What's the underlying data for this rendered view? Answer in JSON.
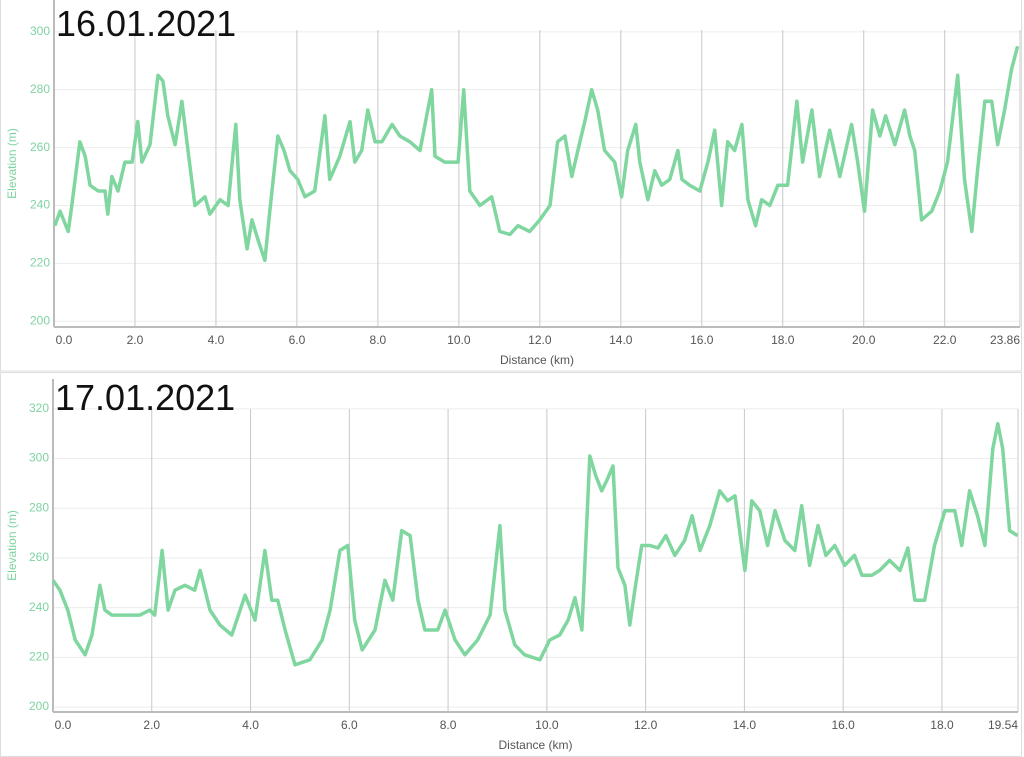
{
  "chart_data": [
    {
      "type": "line",
      "title": "16.01.2021",
      "y_label": "Elevation (m)",
      "x_label": "Distance (km)",
      "color": "#7fd69f",
      "xlim": [
        0,
        23.86
      ],
      "ylim": [
        198,
        311
      ],
      "xticks": [
        {
          "value": 0,
          "label": "0.0"
        },
        {
          "value": 2,
          "label": "2.0"
        },
        {
          "value": 4,
          "label": "4.0"
        },
        {
          "value": 6,
          "label": "6.0"
        },
        {
          "value": 8,
          "label": "8.0"
        },
        {
          "value": 10,
          "label": "10.0"
        },
        {
          "value": 12,
          "label": "12.0"
        },
        {
          "value": 14,
          "label": "14.0"
        },
        {
          "value": 16,
          "label": "16.0"
        },
        {
          "value": 18,
          "label": "18.0"
        },
        {
          "value": 20,
          "label": "20.0"
        },
        {
          "value": 22,
          "label": "22.0"
        },
        23.86
      ],
      "yticks": [
        200,
        220,
        240,
        260,
        280,
        300
      ],
      "grid": true,
      "x": [
        0.02,
        0.15,
        0.35,
        0.44,
        0.64,
        0.77,
        0.89,
        1.09,
        1.26,
        1.33,
        1.43,
        1.58,
        1.75,
        1.93,
        2.07,
        2.17,
        2.37,
        2.57,
        2.69,
        2.81,
        2.99,
        3.16,
        3.31,
        3.48,
        3.73,
        3.85,
        4.1,
        4.3,
        4.49,
        4.59,
        4.77,
        4.89,
        5.04,
        5.21,
        5.33,
        5.53,
        5.68,
        5.83,
        6.02,
        6.2,
        6.44,
        6.69,
        6.81,
        7.06,
        7.31,
        7.43,
        7.6,
        7.75,
        7.93,
        8.1,
        8.35,
        8.54,
        8.79,
        9.04,
        9.33,
        9.41,
        9.65,
        9.98,
        10.12,
        10.27,
        10.52,
        10.81,
        11.01,
        11.26,
        11.46,
        11.75,
        12.0,
        12.25,
        12.44,
        12.62,
        12.79,
        12.99,
        13.11,
        13.28,
        13.43,
        13.6,
        13.85,
        14.02,
        14.17,
        14.37,
        14.47,
        14.67,
        14.84,
        15.01,
        15.21,
        15.41,
        15.51,
        15.7,
        15.95,
        16.15,
        16.32,
        16.49,
        16.64,
        16.81,
        16.99,
        17.14,
        17.33,
        17.48,
        17.68,
        17.88,
        18.12,
        18.35,
        18.49,
        18.72,
        18.91,
        19.16,
        19.41,
        19.7,
        19.85,
        20.02,
        20.22,
        20.4,
        20.54,
        20.77,
        21.01,
        21.14,
        21.26,
        21.43,
        21.68,
        21.88,
        22.07,
        22.32,
        22.49,
        22.67,
        22.81,
        22.99,
        23.16,
        23.31,
        23.48,
        23.65,
        23.8
      ],
      "values": [
        233,
        238,
        231,
        240,
        262,
        257,
        247,
        245,
        245,
        237,
        250,
        245,
        255,
        255,
        269,
        255,
        261,
        285,
        283,
        271,
        261,
        276,
        259,
        240,
        243,
        237,
        242,
        240,
        268,
        242,
        225,
        235,
        228,
        221,
        238,
        264,
        259,
        252,
        249,
        243,
        245,
        271,
        249,
        257,
        269,
        255,
        259,
        273,
        262,
        262,
        268,
        264,
        262,
        259,
        280,
        257,
        255,
        255,
        280,
        245,
        240,
        243,
        231,
        230,
        233,
        231,
        235,
        240,
        262,
        264,
        250,
        262,
        269,
        280,
        273,
        259,
        255,
        243,
        259,
        268,
        255,
        242,
        252,
        247,
        249,
        259,
        249,
        247,
        245,
        255,
        266,
        240,
        262,
        259,
        268,
        242,
        233,
        242,
        240,
        247,
        247,
        276,
        255,
        273,
        250,
        266,
        250,
        268,
        255,
        238,
        273,
        264,
        271,
        261,
        273,
        264,
        259,
        235,
        238,
        245,
        255,
        285,
        249,
        231,
        252,
        276,
        276,
        261,
        273,
        287,
        295
      ]
    },
    {
      "type": "line",
      "title": "17.01.2021",
      "y_label": "Elevation (m)",
      "x_label": "Distance (km)",
      "color": "#7fd69f",
      "xlim": [
        0,
        19.54
      ],
      "ylim": [
        198,
        332
      ],
      "xticks": [
        {
          "value": 0,
          "label": "0.0"
        },
        {
          "value": 2,
          "label": "2.0"
        },
        {
          "value": 4,
          "label": "4.0"
        },
        {
          "value": 6,
          "label": "6.0"
        },
        {
          "value": 8,
          "label": "8.0"
        },
        {
          "value": 10,
          "label": "10.0"
        },
        {
          "value": 12,
          "label": "12.0"
        },
        {
          "value": 14,
          "label": "14.0"
        },
        {
          "value": 16,
          "label": "16.0"
        },
        {
          "value": 18,
          "label": "18.0"
        },
        19.54
      ],
      "yticks": [
        200,
        220,
        240,
        260,
        280,
        300,
        320
      ],
      "grid": true,
      "x": [
        0,
        0.14,
        0.3,
        0.45,
        0.65,
        0.79,
        0.95,
        1.05,
        1.19,
        1.46,
        1.76,
        1.96,
        2.06,
        2.21,
        2.33,
        2.47,
        2.67,
        2.87,
        2.98,
        3.18,
        3.38,
        3.62,
        3.89,
        4.09,
        4.29,
        4.43,
        4.55,
        4.7,
        4.9,
        5.2,
        5.45,
        5.61,
        5.81,
        5.97,
        6.11,
        6.26,
        6.52,
        6.72,
        6.88,
        7.06,
        7.23,
        7.39,
        7.53,
        7.79,
        7.94,
        8.14,
        8.34,
        8.6,
        8.85,
        9.05,
        9.15,
        9.35,
        9.55,
        9.86,
        10.06,
        10.26,
        10.43,
        10.57,
        10.71,
        10.87,
        10.99,
        11.11,
        11.21,
        11.34,
        11.44,
        11.58,
        11.68,
        11.78,
        11.92,
        12.09,
        12.25,
        12.41,
        12.59,
        12.79,
        12.94,
        13.1,
        13.3,
        13.5,
        13.66,
        13.81,
        14.01,
        14.15,
        14.31,
        14.47,
        14.62,
        14.82,
        15.02,
        15.16,
        15.32,
        15.49,
        15.65,
        15.83,
        16.03,
        16.23,
        16.38,
        16.58,
        16.74,
        16.94,
        17.15,
        17.31,
        17.45,
        17.65,
        17.85,
        18.06,
        18.26,
        18.4,
        18.56,
        18.72,
        18.87,
        19.03,
        19.13,
        19.23,
        19.37,
        19.53
      ],
      "values": [
        251,
        247,
        239,
        227,
        221,
        229,
        249,
        239,
        237,
        237,
        237,
        239,
        237,
        263,
        239,
        247,
        249,
        247,
        255,
        239,
        233,
        229,
        245,
        235,
        263,
        243,
        243,
        231,
        217,
        219,
        227,
        239,
        263,
        265,
        235,
        223,
        231,
        251,
        243,
        271,
        269,
        243,
        231,
        231,
        239,
        227,
        221,
        227,
        237,
        273,
        239,
        225,
        221,
        219,
        227,
        229,
        235,
        244,
        231,
        301,
        293,
        287,
        291,
        297,
        256,
        249,
        233,
        247,
        265,
        265,
        264,
        269,
        261,
        267,
        277,
        263,
        273,
        287,
        283,
        285,
        255,
        283,
        279,
        265,
        279,
        267,
        263,
        281,
        257,
        273,
        261,
        265,
        257,
        261,
        253,
        253,
        255,
        259,
        255,
        264,
        243,
        243,
        265,
        279,
        279,
        265,
        287,
        277,
        265,
        304,
        314,
        304,
        271,
        269
      ]
    }
  ]
}
